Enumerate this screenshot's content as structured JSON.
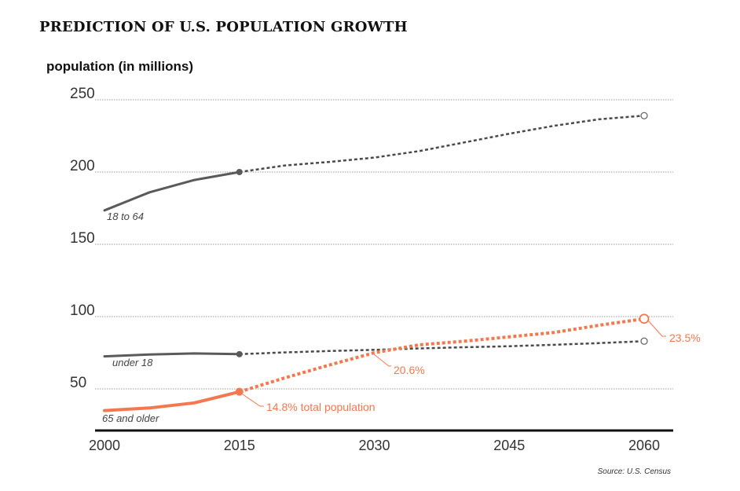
{
  "chart_data": {
    "type": "line",
    "title": "PREDICTION OF U.S. POPULATION GROWTH",
    "ylabel": "population (in millions)",
    "xlabel": "",
    "source": "Source: U.S. Census",
    "xlim": [
      2000,
      2060
    ],
    "ylim": [
      30,
      250
    ],
    "yticks": [
      "250",
      "200",
      "150",
      "100",
      "50"
    ],
    "ytick_values": [
      250,
      200,
      150,
      100,
      50
    ],
    "xticks": [
      "2000",
      "2015",
      "2030",
      "2045",
      "2060"
    ],
    "xtick_values": [
      2000,
      2015,
      2030,
      2045,
      2060
    ],
    "grid": true,
    "colors": {
      "gray": "#5a5a5a",
      "dark_dashed": "#4a4a4a",
      "orange": "#f4784f"
    },
    "series": [
      {
        "name": "18 to 64",
        "color": "#5a5a5a",
        "actual": {
          "x": [
            2000,
            2005,
            2010,
            2015
          ],
          "y": [
            173.5,
            186,
            194.5,
            200
          ]
        },
        "projected": {
          "x": [
            2015,
            2020,
            2025,
            2030,
            2035,
            2040,
            2045,
            2050,
            2055,
            2060
          ],
          "y": [
            200,
            204.5,
            207,
            210,
            214.5,
            220.5,
            226.5,
            232,
            236.5,
            239
          ]
        }
      },
      {
        "name": "under 18",
        "color": "#5a5a5a",
        "actual": {
          "x": [
            2000,
            2005,
            2010,
            2015
          ],
          "y": [
            72.5,
            73.8,
            74.5,
            74
          ]
        },
        "projected": {
          "x": [
            2015,
            2020,
            2025,
            2030,
            2035,
            2040,
            2045,
            2050,
            2055,
            2060
          ],
          "y": [
            74,
            75.2,
            76.2,
            77,
            78,
            78.8,
            79.5,
            80.5,
            81.7,
            83
          ]
        }
      },
      {
        "name": "65 and older",
        "color": "#f4784f",
        "actual": {
          "x": [
            2000,
            2005,
            2010,
            2015
          ],
          "y": [
            35,
            36.8,
            40.3,
            48
          ]
        },
        "projected": {
          "x": [
            2015,
            2020,
            2025,
            2030,
            2035,
            2040,
            2045,
            2050,
            2055,
            2060
          ],
          "y": [
            48,
            57.5,
            66.5,
            75,
            80.5,
            83,
            86,
            89,
            94,
            98.5
          ]
        }
      }
    ],
    "annotations": [
      {
        "text": "14.8% total population"
      },
      {
        "text": "20.6%"
      },
      {
        "text": "23.5%"
      }
    ]
  }
}
